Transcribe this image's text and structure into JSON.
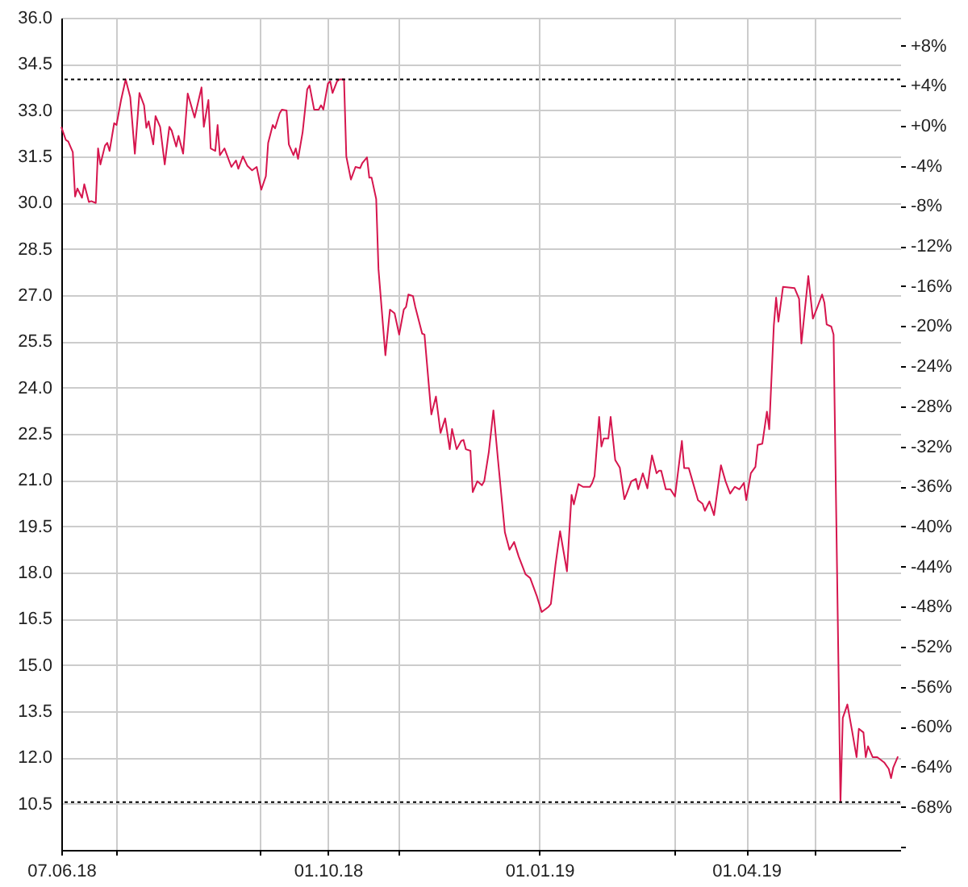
{
  "chart_data": {
    "type": "line",
    "x": [
      "2018-06-07",
      "2018-06-09",
      "2018-06-10",
      "2018-06-12",
      "2018-06-13",
      "2018-06-14",
      "2018-06-16",
      "2018-06-17",
      "2018-06-19",
      "2018-06-20",
      "2018-06-22",
      "2018-06-23",
      "2018-06-24",
      "2018-06-26",
      "2018-06-27",
      "2018-06-28",
      "2018-06-30",
      "2018-07-01",
      "2018-07-03",
      "2018-07-05",
      "2018-07-07",
      "2018-07-09",
      "2018-07-11",
      "2018-07-13",
      "2018-07-14",
      "2018-07-15",
      "2018-07-17",
      "2018-07-18",
      "2018-07-20",
      "2018-07-22",
      "2018-07-24",
      "2018-07-25",
      "2018-07-27",
      "2018-07-28",
      "2018-07-30",
      "2018-08-01",
      "2018-08-04",
      "2018-08-07",
      "2018-08-08",
      "2018-08-10",
      "2018-08-11",
      "2018-08-13",
      "2018-08-14",
      "2018-08-15",
      "2018-08-17",
      "2018-08-20",
      "2018-08-22",
      "2018-08-23",
      "2018-08-25",
      "2018-08-27",
      "2018-08-29",
      "2018-08-31",
      "2018-09-02",
      "2018-09-04",
      "2018-09-05",
      "2018-09-07",
      "2018-09-08",
      "2018-09-10",
      "2018-09-11",
      "2018-09-13",
      "2018-09-14",
      "2018-09-16",
      "2018-09-17",
      "2018-09-18",
      "2018-09-20",
      "2018-09-22",
      "2018-09-23",
      "2018-09-25",
      "2018-09-27",
      "2018-09-28",
      "2018-09-29",
      "2018-10-01",
      "2018-10-02",
      "2018-10-03",
      "2018-10-05",
      "2018-10-06",
      "2018-10-08",
      "2018-10-09",
      "2018-10-11",
      "2018-10-13",
      "2018-10-15",
      "2018-10-16",
      "2018-10-18",
      "2018-10-19",
      "2018-10-20",
      "2018-10-22",
      "2018-10-23",
      "2018-10-26",
      "2018-10-28",
      "2018-10-30",
      "2018-11-01",
      "2018-11-03",
      "2018-11-04",
      "2018-11-05",
      "2018-11-07",
      "2018-11-08",
      "2018-11-11",
      "2018-11-12",
      "2018-11-15",
      "2018-11-17",
      "2018-11-19",
      "2018-11-21",
      "2018-11-23",
      "2018-11-24",
      "2018-11-26",
      "2018-11-28",
      "2018-11-29",
      "2018-11-30",
      "2018-12-02",
      "2018-12-03",
      "2018-12-05",
      "2018-12-07",
      "2018-12-08",
      "2018-12-10",
      "2018-12-12",
      "2018-12-14",
      "2018-12-17",
      "2018-12-19",
      "2018-12-21",
      "2018-12-23",
      "2018-12-26",
      "2018-12-28",
      "2018-12-31",
      "2019-01-02",
      "2019-01-05",
      "2019-01-06",
      "2019-01-08",
      "2019-01-10",
      "2019-01-13",
      "2019-01-15",
      "2019-01-16",
      "2019-01-18",
      "2019-01-20",
      "2019-01-23",
      "2019-01-24",
      "2019-01-25",
      "2019-01-27",
      "2019-01-28",
      "2019-01-29",
      "2019-01-31",
      "2019-02-01",
      "2019-02-03",
      "2019-02-05",
      "2019-02-07",
      "2019-02-08",
      "2019-02-10",
      "2019-02-12",
      "2019-02-13",
      "2019-02-15",
      "2019-02-17",
      "2019-02-18",
      "2019-02-19",
      "2019-02-21",
      "2019-02-22",
      "2019-02-23",
      "2019-02-25",
      "2019-02-27",
      "2019-03-01",
      "2019-03-04",
      "2019-03-05",
      "2019-03-07",
      "2019-03-08",
      "2019-03-11",
      "2019-03-13",
      "2019-03-14",
      "2019-03-16",
      "2019-03-18",
      "2019-03-21",
      "2019-03-23",
      "2019-03-25",
      "2019-03-27",
      "2019-03-29",
      "2019-03-31",
      "2019-04-01",
      "2019-04-03",
      "2019-04-05",
      "2019-04-06",
      "2019-04-08",
      "2019-04-10",
      "2019-04-11",
      "2019-04-13",
      "2019-04-14",
      "2019-04-15",
      "2019-04-17",
      "2019-04-22",
      "2019-04-24",
      "2019-04-25",
      "2019-04-28",
      "2019-04-30",
      "2019-05-02",
      "2019-05-04",
      "2019-05-05",
      "2019-05-06",
      "2019-05-08",
      "2019-05-09",
      "2019-05-12",
      "2019-05-13",
      "2019-05-15",
      "2019-05-17",
      "2019-05-19",
      "2019-05-20",
      "2019-05-22",
      "2019-05-23",
      "2019-05-24",
      "2019-05-26",
      "2019-05-28",
      "2019-05-31",
      "2019-06-02",
      "2019-06-03",
      "2019-06-04",
      "2019-06-06"
    ],
    "values": [
      32.46,
      32.03,
      31.99,
      31.64,
      30.2,
      30.46,
      30.16,
      30.6,
      30.02,
      30.05,
      29.99,
      31.76,
      31.24,
      31.85,
      31.94,
      31.68,
      32.58,
      32.52,
      33.33,
      34.0,
      33.42,
      31.59,
      33.56,
      33.16,
      32.43,
      32.64,
      31.89,
      32.81,
      32.46,
      31.24,
      32.46,
      32.34,
      31.82,
      32.17,
      31.59,
      33.54,
      32.76,
      33.74,
      32.46,
      33.33,
      31.76,
      31.68,
      32.52,
      31.54,
      31.76,
      31.16,
      31.37,
      31.1,
      31.5,
      31.19,
      31.05,
      31.16,
      30.42,
      30.86,
      31.94,
      32.52,
      32.41,
      32.9,
      33.02,
      32.99,
      31.89,
      31.54,
      31.76,
      31.42,
      32.29,
      33.68,
      33.8,
      33.02,
      33.02,
      33.16,
      33.02,
      33.86,
      33.94,
      33.56,
      33.94,
      34.0,
      34.0,
      31.5,
      30.75,
      31.16,
      31.12,
      31.29,
      31.47,
      30.81,
      30.81,
      30.12,
      27.84,
      25.05,
      26.53,
      26.41,
      25.72,
      26.53,
      26.62,
      27.02,
      26.97,
      26.62,
      25.75,
      25.72,
      23.13,
      23.71,
      22.53,
      23.0,
      22.0,
      22.66,
      22.0,
      22.27,
      22.3,
      22.0,
      21.95,
      20.61,
      20.96,
      20.83,
      20.96,
      21.91,
      23.26,
      21.65,
      19.3,
      18.74,
      18.99,
      18.52,
      17.94,
      17.82,
      17.21,
      16.72,
      16.89,
      16.98,
      18.25,
      19.34,
      18.04,
      20.52,
      20.21,
      20.87,
      20.78,
      20.78,
      20.91,
      21.13,
      23.05,
      22.09,
      22.35,
      22.35,
      23.05,
      21.65,
      21.4,
      20.38,
      20.56,
      20.96,
      21.04,
      20.7,
      21.22,
      20.73,
      21.3,
      21.8,
      21.22,
      21.3,
      21.3,
      20.7,
      20.7,
      20.47,
      22.27,
      21.39,
      21.39,
      21.13,
      20.35,
      20.23,
      20.0,
      20.31,
      19.86,
      21.48,
      20.96,
      20.56,
      20.78,
      20.7,
      20.91,
      20.35,
      21.22,
      21.43,
      22.14,
      22.18,
      23.22,
      22.65,
      26.01,
      26.92,
      26.14,
      27.27,
      27.23,
      26.88,
      25.43,
      27.62,
      26.24,
      26.62,
      27.02,
      26.76,
      26.05,
      25.98,
      25.72,
      10.55,
      13.28,
      13.72,
      12.88,
      12.01,
      12.93,
      12.81,
      12.01,
      12.36,
      12.01,
      12.01,
      11.84,
      11.63,
      11.33,
      11.68,
      12.03
    ],
    "color": "#d6164e",
    "xlim": [
      "2018-06-07",
      "2019-06-07"
    ],
    "xticks": [
      {
        "value": "2018-06-07",
        "label": "07.06.18"
      },
      {
        "value": "2018-07-01",
        "label": null
      },
      {
        "value": "2018-09-01",
        "label": null
      },
      {
        "value": "2018-10-01",
        "label": "01.10.18"
      },
      {
        "value": "2018-11-01",
        "label": null
      },
      {
        "value": "2019-01-01",
        "label": "01.01.19"
      },
      {
        "value": "2019-03-01",
        "label": null
      },
      {
        "value": "2019-04-01",
        "label": "01.04.19"
      },
      {
        "value": "2019-05-01",
        "label": null
      }
    ],
    "ylim": [
      9.0,
      36.0
    ],
    "yticks": [
      {
        "value": 10.5,
        "label": "10.5"
      },
      {
        "value": 12,
        "label": "12.0"
      },
      {
        "value": 13.5,
        "label": "13.5"
      },
      {
        "value": 15,
        "label": "15.0"
      },
      {
        "value": 16.5,
        "label": "16.5"
      },
      {
        "value": 18,
        "label": "18.0"
      },
      {
        "value": 19.5,
        "label": "19.5"
      },
      {
        "value": 21,
        "label": "21.0"
      },
      {
        "value": 22.5,
        "label": "22.5"
      },
      {
        "value": 24,
        "label": "24.0"
      },
      {
        "value": 25.5,
        "label": "25.5"
      },
      {
        "value": 27,
        "label": "27.0"
      },
      {
        "value": 28.5,
        "label": "28.5"
      },
      {
        "value": 30,
        "label": "30.0"
      },
      {
        "value": 31.5,
        "label": "31.5"
      },
      {
        "value": 33,
        "label": "33.0"
      },
      {
        "value": 34.5,
        "label": "34.5"
      },
      {
        "value": 36,
        "label": "36.0"
      }
    ],
    "y2lim": [
      -72.3,
      10.8
    ],
    "y2ticks": [
      {
        "value": 8,
        "label": "+8%"
      },
      {
        "value": 4,
        "label": "+4%"
      },
      {
        "value": 0,
        "label": "+0%"
      },
      {
        "value": -4,
        "label": "-4%"
      },
      {
        "value": -8,
        "label": "-8%"
      },
      {
        "value": -12,
        "label": "-12%"
      },
      {
        "value": -16,
        "label": "-16%"
      },
      {
        "value": -20,
        "label": "-20%"
      },
      {
        "value": -24,
        "label": "-24%"
      },
      {
        "value": -28,
        "label": "-28%"
      },
      {
        "value": -32,
        "label": "-32%"
      },
      {
        "value": -36,
        "label": "-36%"
      },
      {
        "value": -40,
        "label": "-40%"
      },
      {
        "value": -44,
        "label": "-44%"
      },
      {
        "value": -48,
        "label": "-48%"
      },
      {
        "value": -52,
        "label": "-52%"
      },
      {
        "value": -56,
        "label": "-56%"
      },
      {
        "value": -60,
        "label": "-60%"
      },
      {
        "value": -64,
        "label": "-64%"
      },
      {
        "value": -68,
        "label": "-68%"
      },
      {
        "value": -72,
        "label": null
      }
    ],
    "ref_lines": [
      {
        "axis": "y",
        "value": 34.0,
        "label": null,
        "color": "#000000",
        "line_style": "dotted"
      },
      {
        "axis": "y",
        "value": 10.55,
        "label": null,
        "color": "#000000",
        "line_style": "dotted"
      }
    ],
    "grid": true
  }
}
